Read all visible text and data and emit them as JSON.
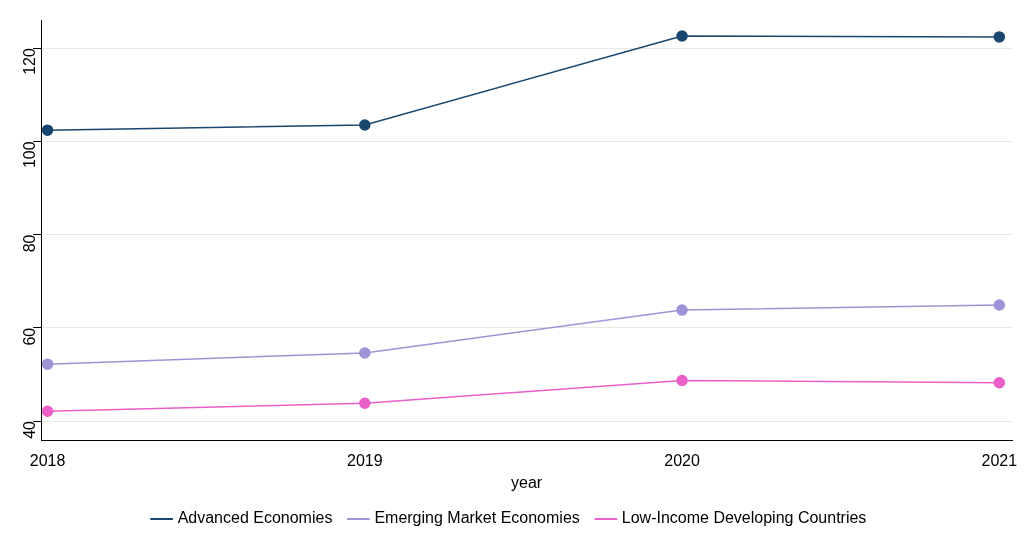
{
  "chart_data": {
    "type": "line",
    "xlabel": "year",
    "x": [
      2018,
      2019,
      2020,
      2021
    ],
    "xlim": [
      2017.98,
      2021.04
    ],
    "xticks": [
      2018,
      2019,
      2020,
      2021
    ],
    "ylim": [
      35.8,
      125.9
    ],
    "yticks": [
      40,
      60,
      80,
      100,
      120
    ],
    "grid": "y",
    "legend": "bottom",
    "marker": "circle",
    "line_style": "solid",
    "series": [
      {
        "name": "Advanced Economies",
        "color": "#1a476f",
        "values": [
          102.4,
          103.5,
          122.6,
          122.4
        ]
      },
      {
        "name": "Emerging Market Economies",
        "color": "#9d94d6",
        "values": [
          52.2,
          54.6,
          63.8,
          64.9
        ]
      },
      {
        "name": "Low-Income Developing Countries",
        "color": "#ea5fc8",
        "values": [
          42.1,
          43.8,
          48.7,
          48.2
        ]
      }
    ]
  }
}
